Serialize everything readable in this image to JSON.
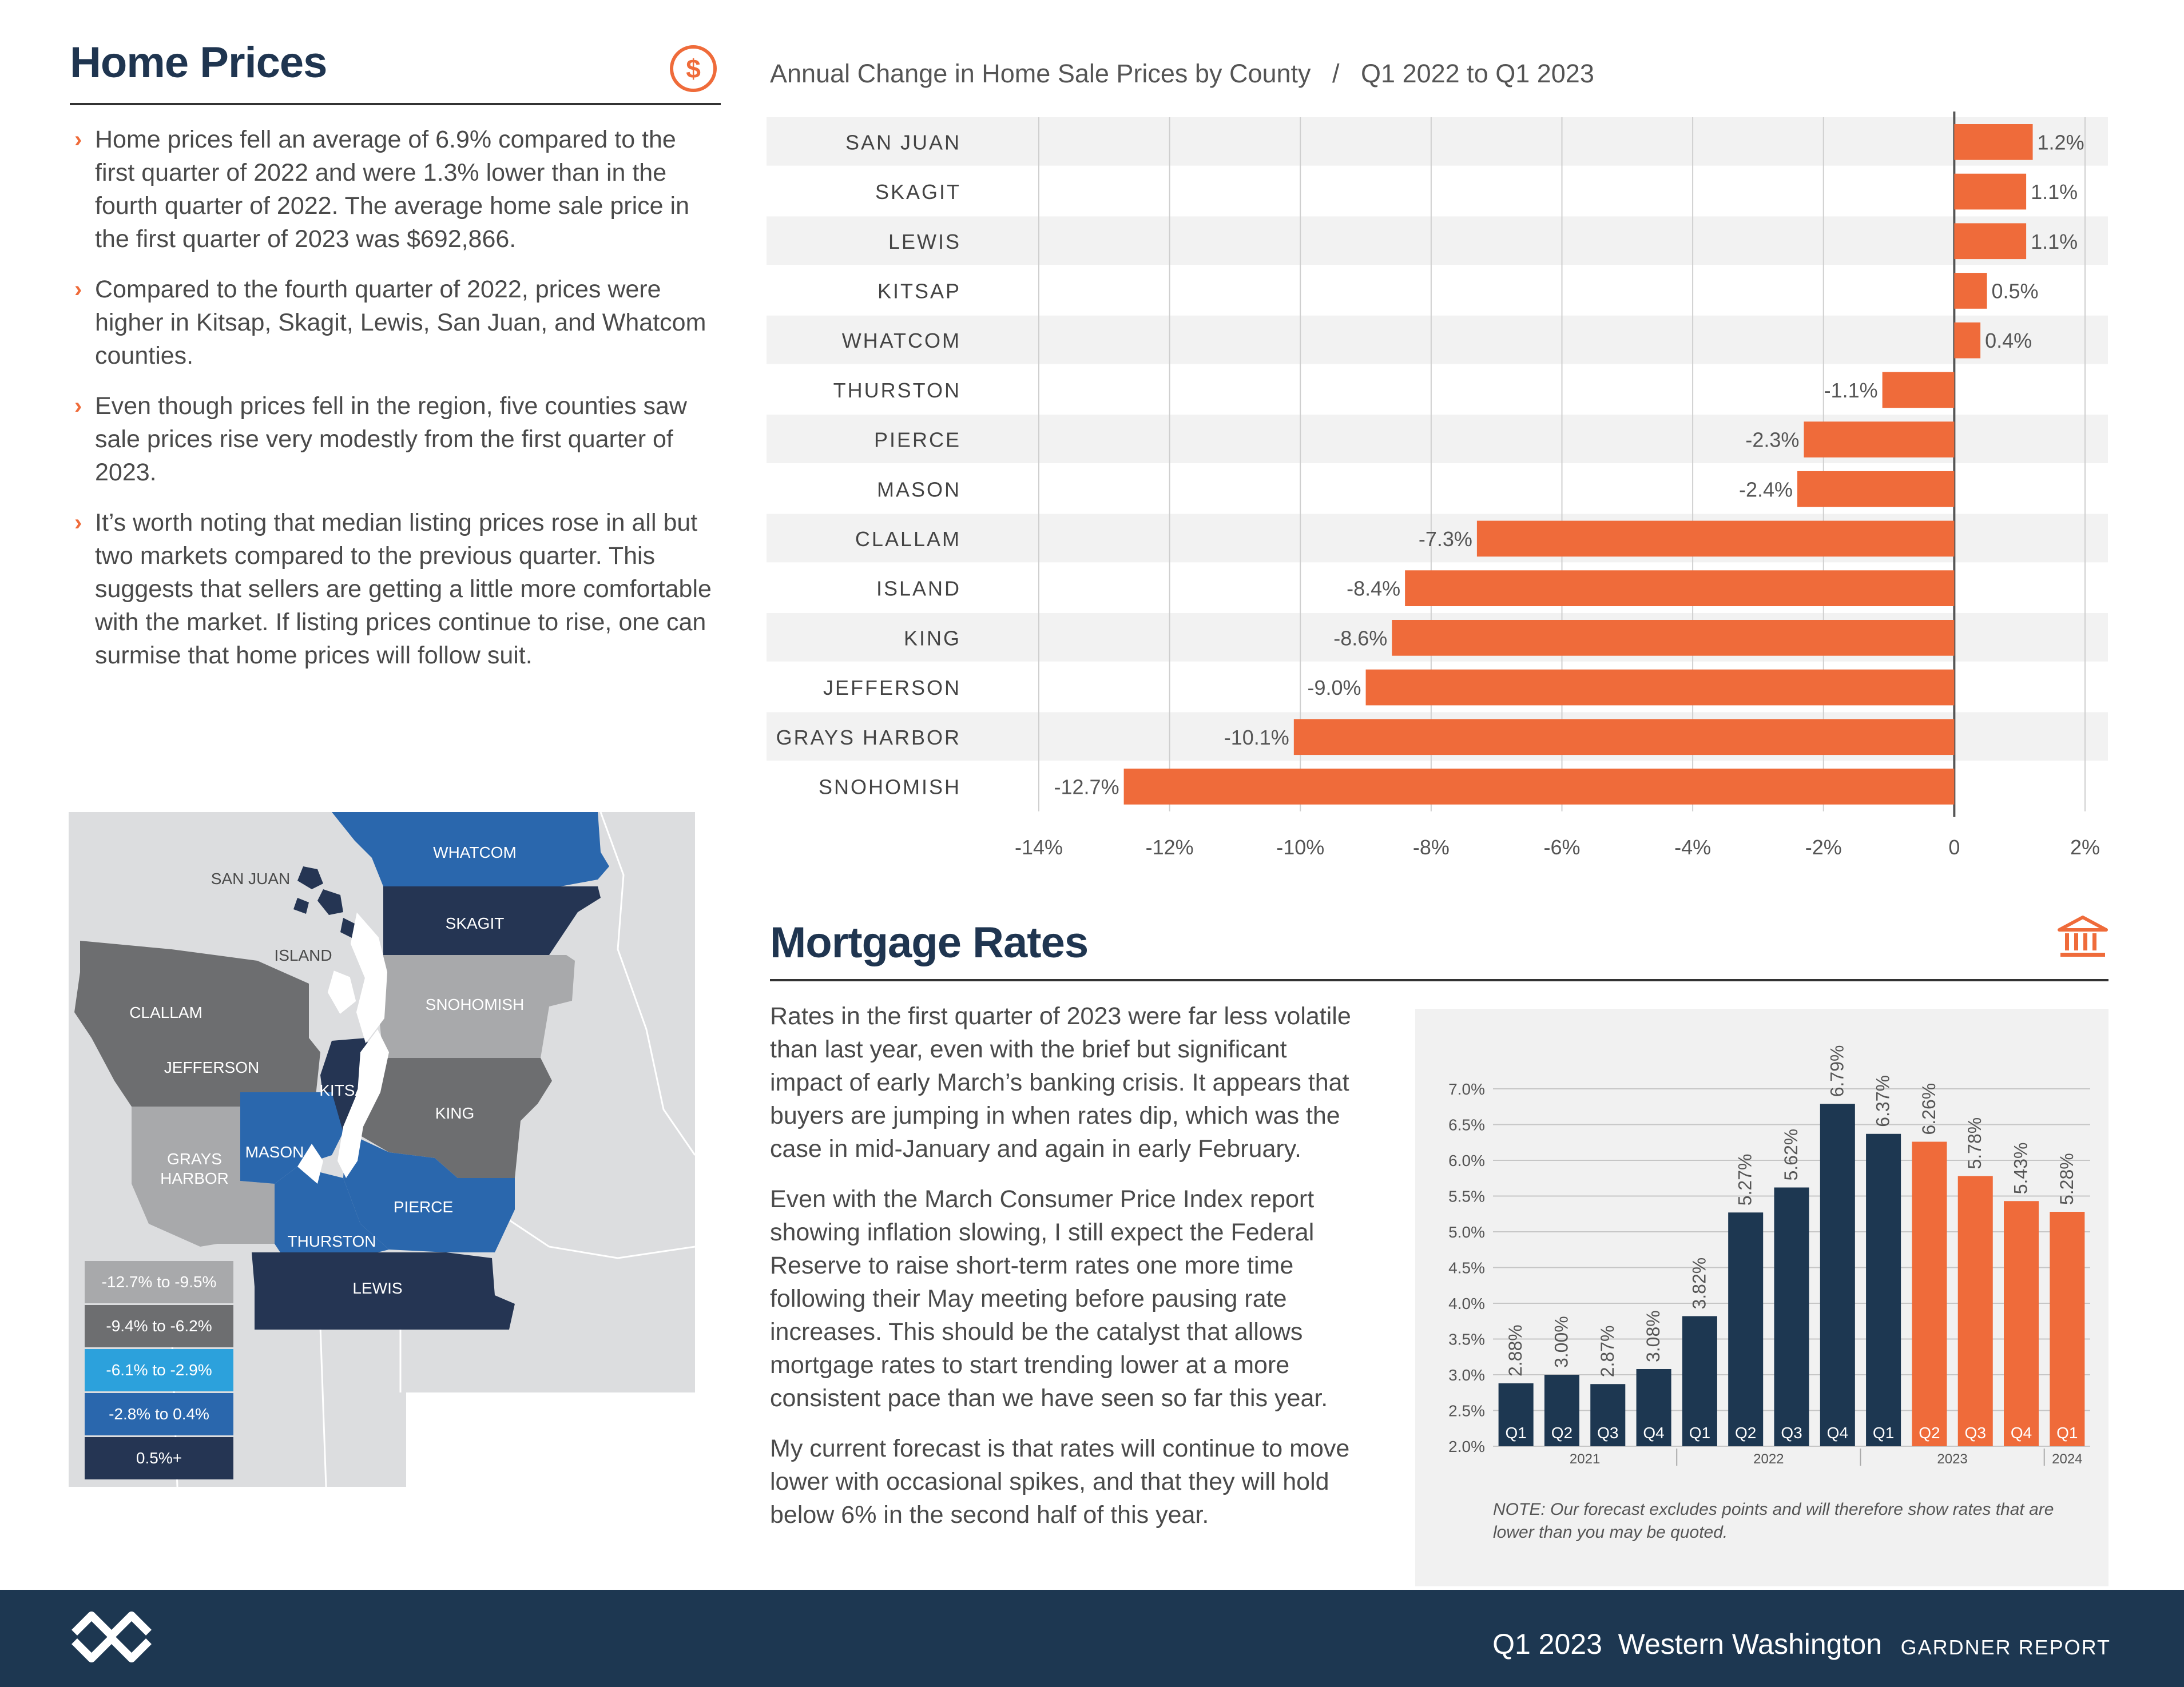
{
  "home_prices": {
    "title": "Home Prices",
    "icon": "dollar-circle-icon",
    "bullets": [
      "Home prices fell an average of 6.9% compared to the first quarter of 2022 and were 1.3% lower than in the fourth quarter of 2022. The average home sale price in the first quarter of 2023 was $692,866.",
      "Compared to the fourth quarter of 2022, prices were higher in Kitsap, Skagit, Lewis, San Juan, and Whatcom counties.",
      "Even though prices fell in the region, five counties saw sale prices rise very modestly from the first quarter of 2023.",
      "It’s worth noting that median listing prices rose in all but two markets compared to the previous quarter. This suggests that sellers are getting a little more comfortable with the market. If listing prices continue to rise, one can surmise that home prices will follow suit."
    ]
  },
  "price_chart_title": "Annual Change in Home Sale Prices by County   /   Q1 2022 to Q1 2023",
  "map": {
    "labels": [
      "WHATCOM",
      "SAN JUAN",
      "SKAGIT",
      "ISLAND",
      "CLALLAM",
      "SNOHOMISH",
      "JEFFERSON",
      "KITSAP",
      "KING",
      "GRAYS",
      "HARBOR",
      "MASON",
      "PIERCE",
      "THURSTON",
      "LEWIS"
    ],
    "legend": [
      {
        "label": "-12.7% to -9.5%",
        "color": "#a8a9ab"
      },
      {
        "label": "-9.4% to -6.2%",
        "color": "#6d6e70"
      },
      {
        "label": "-6.1% to -2.9%",
        "color": "#2ca1dc"
      },
      {
        "label": "-2.8% to 0.4%",
        "color": "#2a67ad"
      },
      {
        "label": "0.5%+",
        "color": "#253553"
      }
    ]
  },
  "mortgage": {
    "title": "Mortgage Rates",
    "icon": "bank-icon",
    "paragraphs": [
      "Rates in the first quarter of 2023 were far less volatile than last year, even with the brief but significant impact of early March’s banking crisis. It appears that buyers are jumping in when rates dip, which was the case in mid-January and again in early February.",
      "Even with the March Consumer Price Index report showing inflation slowing, I still expect the Federal Reserve to raise short-term rates one more time following their May meeting before pausing rate increases. This should be the catalyst that allows mortgage rates to start trending lower at a more consistent pace than we have seen so far this year.",
      "My current forecast is that rates will continue to move lower with occasional spikes, and that they will hold below 6% in the second half of this year."
    ],
    "note": "NOTE: Our forecast excludes points and will therefore show rates that are lower than you may be quoted."
  },
  "footer": {
    "logo": "windermere-logo-icon",
    "edition": "Q1 2023  Western Washington",
    "report": "GARDNER REPORT"
  },
  "chart_data": [
    {
      "type": "bar",
      "orientation": "horizontal",
      "title": "Annual Change in Home Sale Prices by County   /   Q1 2022 to Q1 2023",
      "categories": [
        "SAN JUAN",
        "SKAGIT",
        "LEWIS",
        "KITSAP",
        "WHATCOM",
        "THURSTON",
        "PIERCE",
        "MASON",
        "CLALLAM",
        "ISLAND",
        "KING",
        "JEFFERSON",
        "GRAYS HARBOR",
        "SNOHOMISH"
      ],
      "values": [
        1.2,
        1.1,
        1.1,
        0.5,
        0.4,
        -1.1,
        -2.3,
        -2.4,
        -7.3,
        -8.4,
        -8.6,
        -9.0,
        -10.1,
        -12.7
      ],
      "data_labels": [
        "1.2%",
        "1.1%",
        "1.1%",
        "0.5%",
        "0.4%",
        "-1.1%",
        "-2.3%",
        "-2.4%",
        "-7.3%",
        "-8.4%",
        "-8.6%",
        "-9.0%",
        "-10.1%",
        "-12.7%"
      ],
      "xlim": [
        -14,
        2
      ],
      "xticks": [
        "-14%",
        "-12%",
        "-10%",
        "-8%",
        "-6%",
        "-4%",
        "-2%",
        "0",
        "2%"
      ],
      "xtick_values": [
        -14,
        -12,
        -10,
        -8,
        -6,
        -4,
        -2,
        0,
        2
      ],
      "color": "#ef6b3a",
      "grid": "vertical"
    },
    {
      "type": "bar",
      "categories": [
        "Q1",
        "Q2",
        "Q3",
        "Q4",
        "Q1",
        "Q2",
        "Q3",
        "Q4",
        "Q1",
        "Q2",
        "Q3",
        "Q4",
        "Q1"
      ],
      "values": [
        2.88,
        3.0,
        2.87,
        3.08,
        3.82,
        5.27,
        5.62,
        6.79,
        6.37,
        6.26,
        5.78,
        5.43,
        5.28
      ],
      "data_labels": [
        "2.88%",
        "3.00%",
        "2.87%",
        "3.08%",
        "3.82%",
        "5.27%",
        "5.62%",
        "6.79%",
        "6.37%",
        "6.26%",
        "5.78%",
        "5.43%",
        "5.28%"
      ],
      "colors": [
        "#1d3751",
        "#1d3751",
        "#1d3751",
        "#1d3751",
        "#1d3751",
        "#1d3751",
        "#1d3751",
        "#1d3751",
        "#1d3751",
        "#ef6b3a",
        "#ef6b3a",
        "#ef6b3a",
        "#ef6b3a"
      ],
      "year_groups": [
        {
          "label": "2021",
          "count": 4
        },
        {
          "label": "2022",
          "count": 4
        },
        {
          "label": "2023",
          "count": 4
        },
        {
          "label": "2024",
          "count": 1
        }
      ],
      "ylim": [
        2.0,
        7.0
      ],
      "yticks": [
        "2.0%",
        "2.5%",
        "3.0%",
        "3.5%",
        "4.0%",
        "4.5%",
        "5.0%",
        "5.5%",
        "6.0%",
        "6.5%",
        "7.0%"
      ],
      "ytick_values": [
        2.0,
        2.5,
        3.0,
        3.5,
        4.0,
        4.5,
        5.0,
        5.5,
        6.0,
        6.5,
        7.0
      ],
      "grid": "horizontal"
    }
  ]
}
